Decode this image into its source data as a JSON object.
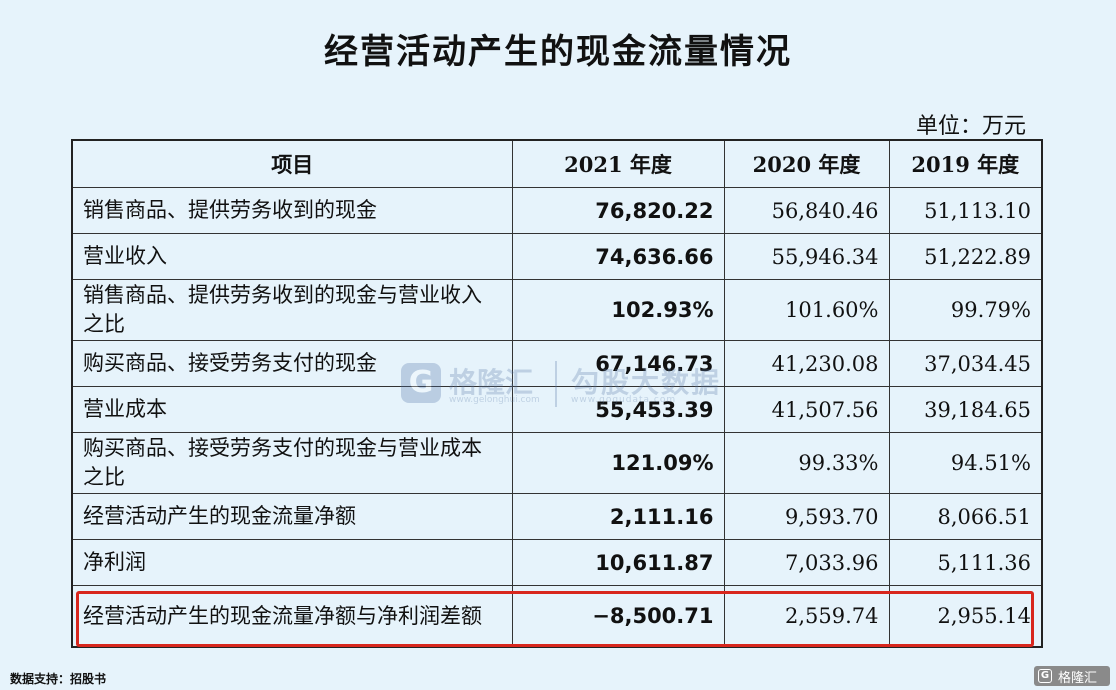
{
  "title": "经营活动产生的现金流量情况",
  "unit": "单位：万元",
  "table": {
    "headers": [
      "项目",
      "2021 年度",
      "2020 年度",
      "2019 年度"
    ],
    "rows": [
      {
        "item": "销售商品、提供劳务收到的现金",
        "v2021": "76,820.22",
        "v2020": "56,840.46",
        "v2019": "51,113.10"
      },
      {
        "item": "营业收入",
        "v2021": "74,636.66",
        "v2020": "55,946.34",
        "v2019": "51,222.89"
      },
      {
        "item": "销售商品、提供劳务收到的现金与营业收入之比",
        "v2021": "102.93%",
        "v2020": "101.60%",
        "v2019": "99.79%"
      },
      {
        "item": "购买商品、接受劳务支付的现金",
        "v2021": "67,146.73",
        "v2020": "41,230.08",
        "v2019": "37,034.45"
      },
      {
        "item": "营业成本",
        "v2021": "55,453.39",
        "v2020": "41,507.56",
        "v2019": "39,184.65"
      },
      {
        "item": "购买商品、接受劳务支付的现金与营业成本之比",
        "v2021": "121.09%",
        "v2020": "99.33%",
        "v2019": "94.51%"
      },
      {
        "item": "经营活动产生的现金流量净额",
        "v2021": "2,111.16",
        "v2020": "9,593.70",
        "v2019": "8,066.51"
      },
      {
        "item": "净利润",
        "v2021": "10,611.87",
        "v2020": "7,033.96",
        "v2019": "5,111.36"
      },
      {
        "item": "经营活动产生的现金流量净额与净利润差额",
        "v2021": "−8,500.71",
        "v2020": "2,559.74",
        "v2019": "2,955.14"
      }
    ]
  },
  "watermark": {
    "logo_glyph": "G",
    "name": "格隆汇",
    "url": "www.gelonghui.com",
    "name2": "勾股大数据",
    "url2": "www.gogudata.com"
  },
  "highlight_color": "#d8261d",
  "source": "数据支持：招股书",
  "brand": {
    "name": "格隆汇",
    "icon": "gelonghui-logo-icon"
  }
}
